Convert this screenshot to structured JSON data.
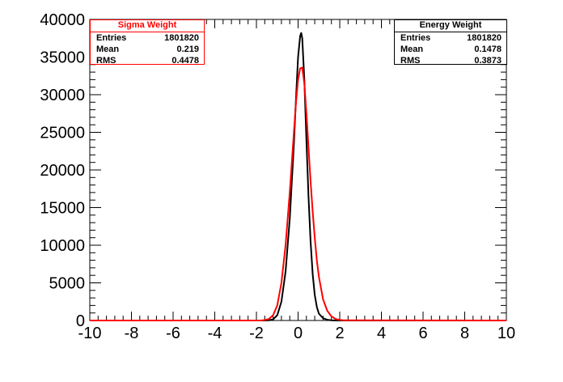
{
  "chart_data": {
    "type": "line",
    "xlim": [
      -10,
      10
    ],
    "ylim": [
      0,
      40000
    ],
    "x_ticks": [
      -10,
      -8,
      -6,
      -4,
      -2,
      0,
      2,
      4,
      6,
      8,
      10
    ],
    "y_ticks": [
      0,
      5000,
      10000,
      15000,
      20000,
      25000,
      30000,
      35000,
      40000
    ],
    "series": [
      {
        "name": "Energy Weight",
        "color": "#000000",
        "x": [
          -10,
          -1.6,
          -1.4,
          -1.2,
          -1.0,
          -0.8,
          -0.6,
          -0.4,
          -0.2,
          -0.1,
          0,
          0.1,
          0.15,
          0.2,
          0.3,
          0.4,
          0.5,
          0.6,
          0.7,
          0.8,
          0.9,
          1.0,
          1.2,
          1.4,
          1.6,
          1.8,
          10
        ],
        "y": [
          0,
          0,
          30,
          150,
          700,
          2500,
          6500,
          13500,
          23500,
          29500,
          35000,
          37800,
          38200,
          37500,
          32000,
          24000,
          16500,
          10500,
          6200,
          3400,
          1800,
          900,
          300,
          100,
          30,
          0,
          0
        ]
      },
      {
        "name": "Sigma Weight",
        "color": "#ff0000",
        "x": [
          -10,
          -1.8,
          -1.6,
          -1.4,
          -1.2,
          -1.0,
          -0.8,
          -0.6,
          -0.4,
          -0.2,
          -0.1,
          0,
          0.1,
          0.2,
          0.3,
          0.4,
          0.5,
          0.6,
          0.7,
          0.8,
          0.9,
          1.0,
          1.2,
          1.4,
          1.6,
          1.8,
          2.0,
          2.2,
          10
        ],
        "y": [
          0,
          0,
          60,
          200,
          700,
          2000,
          5000,
          10000,
          17000,
          25000,
          29000,
          32000,
          33500,
          33600,
          31500,
          27500,
          23000,
          18500,
          14500,
          11000,
          8000,
          5800,
          2800,
          1300,
          550,
          200,
          80,
          20,
          0
        ]
      }
    ]
  },
  "stats": {
    "sigma": {
      "title": "Sigma Weight",
      "entries_label": "Entries",
      "entries_value": "1801820",
      "mean_label": "Mean",
      "mean_value": "0.219",
      "rms_label": "RMS",
      "rms_value": "0.4478",
      "color": "#ff0000"
    },
    "energy": {
      "title": "Energy Weight",
      "entries_label": "Entries",
      "entries_value": "1801820",
      "mean_label": "Mean",
      "mean_value": "0.1478",
      "rms_label": "RMS",
      "rms_value": "0.3873",
      "color": "#000000"
    }
  }
}
